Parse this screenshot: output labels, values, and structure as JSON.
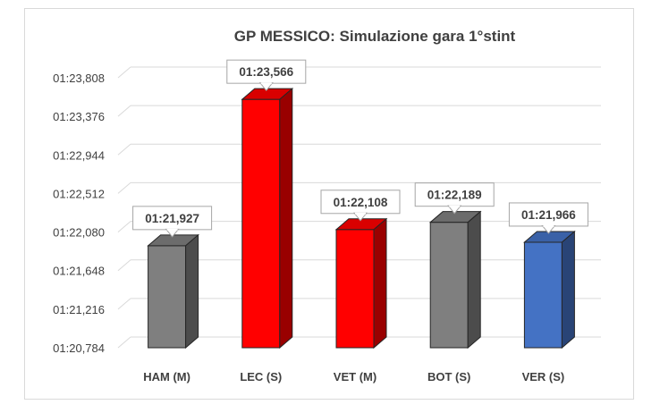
{
  "chart_data": {
    "type": "bar",
    "title": "GP MESSICO: Simulazione gara 1°stint",
    "categories": [
      "HAM (M)",
      "LEC (S)",
      "VET (M)",
      "BOT (S)",
      "VER (S)"
    ],
    "values": [
      81.927,
      83.566,
      82.108,
      82.189,
      81.966
    ],
    "value_labels": [
      "01:21,927",
      "01:23,566",
      "01:22,108",
      "01:22,189",
      "01:21,966"
    ],
    "colors": [
      "#7f7f7f",
      "#ff0000",
      "#ff0000",
      "#7f7f7f",
      "#4472c4"
    ],
    "yticks": [
      80.784,
      81.216,
      81.648,
      82.08,
      82.512,
      82.944,
      83.376,
      83.808
    ],
    "ytick_labels": [
      "01:20,784",
      "01:21,216",
      "01:21,648",
      "01:22,080",
      "01:22,512",
      "01:22,944",
      "01:23,376",
      "01:23,808"
    ],
    "ylim": [
      80.784,
      83.808
    ],
    "grid": true,
    "legend": "none"
  }
}
